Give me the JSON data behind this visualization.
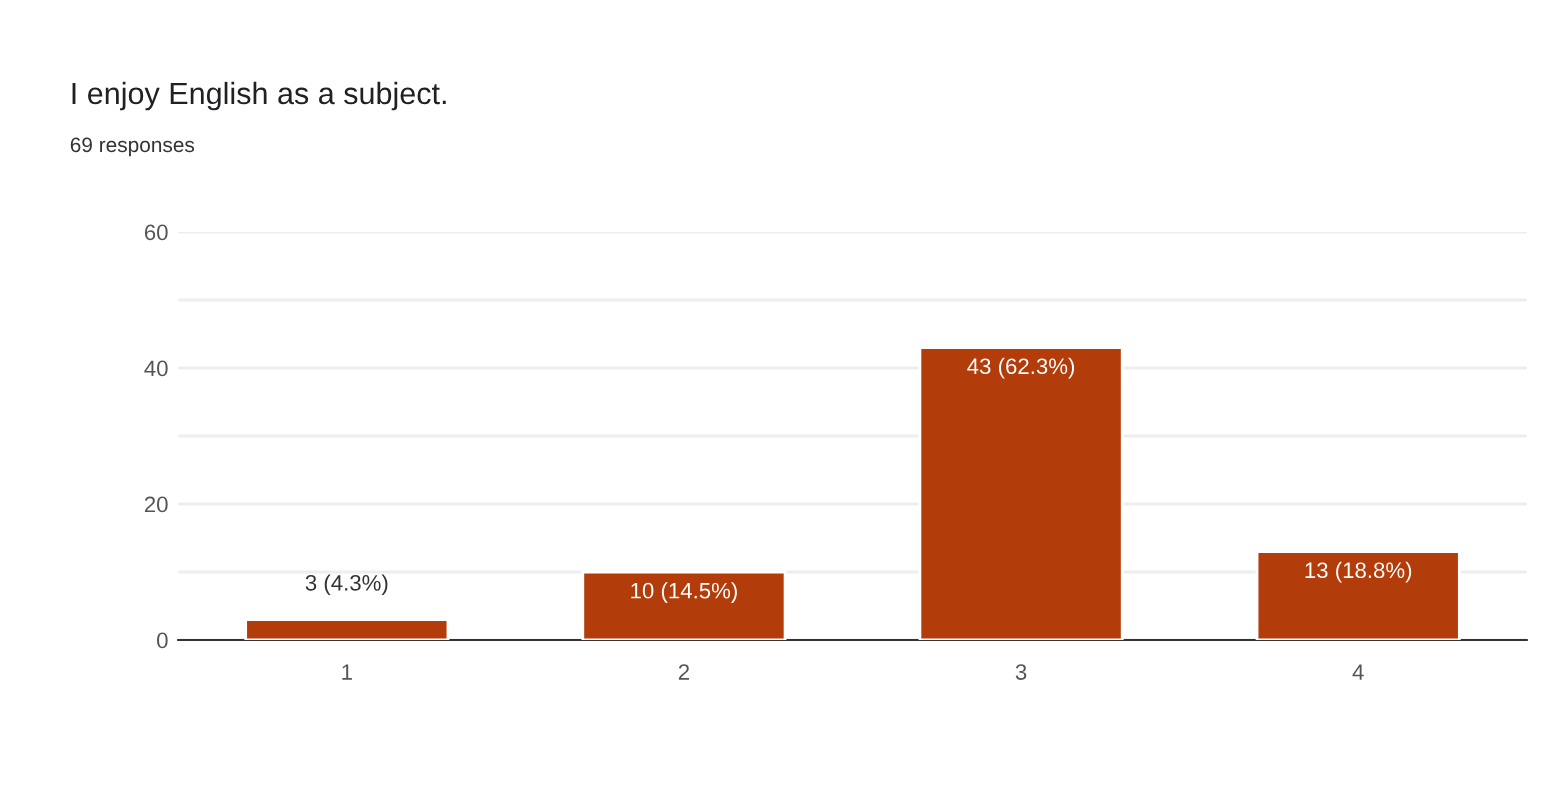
{
  "chart_data": {
    "type": "bar",
    "title": "I enjoy English as a subject.",
    "subtitle": "69 responses",
    "categories": [
      "1",
      "2",
      "3",
      "4"
    ],
    "values": [
      3,
      10,
      43,
      13
    ],
    "color": "#b23c0a",
    "value_labels": [
      "3 (4.3%)",
      "10 (14.5%)",
      "43 (62.3%)",
      "13 (18.8%)"
    ],
    "ylim": [
      0,
      60
    ],
    "yticks": [
      0,
      {
        "value": 10,
        "label": null
      },
      20,
      {
        "value": 30,
        "label": null
      },
      40,
      {
        "value": 50,
        "label": null
      },
      60
    ],
    "grid": "y"
  }
}
